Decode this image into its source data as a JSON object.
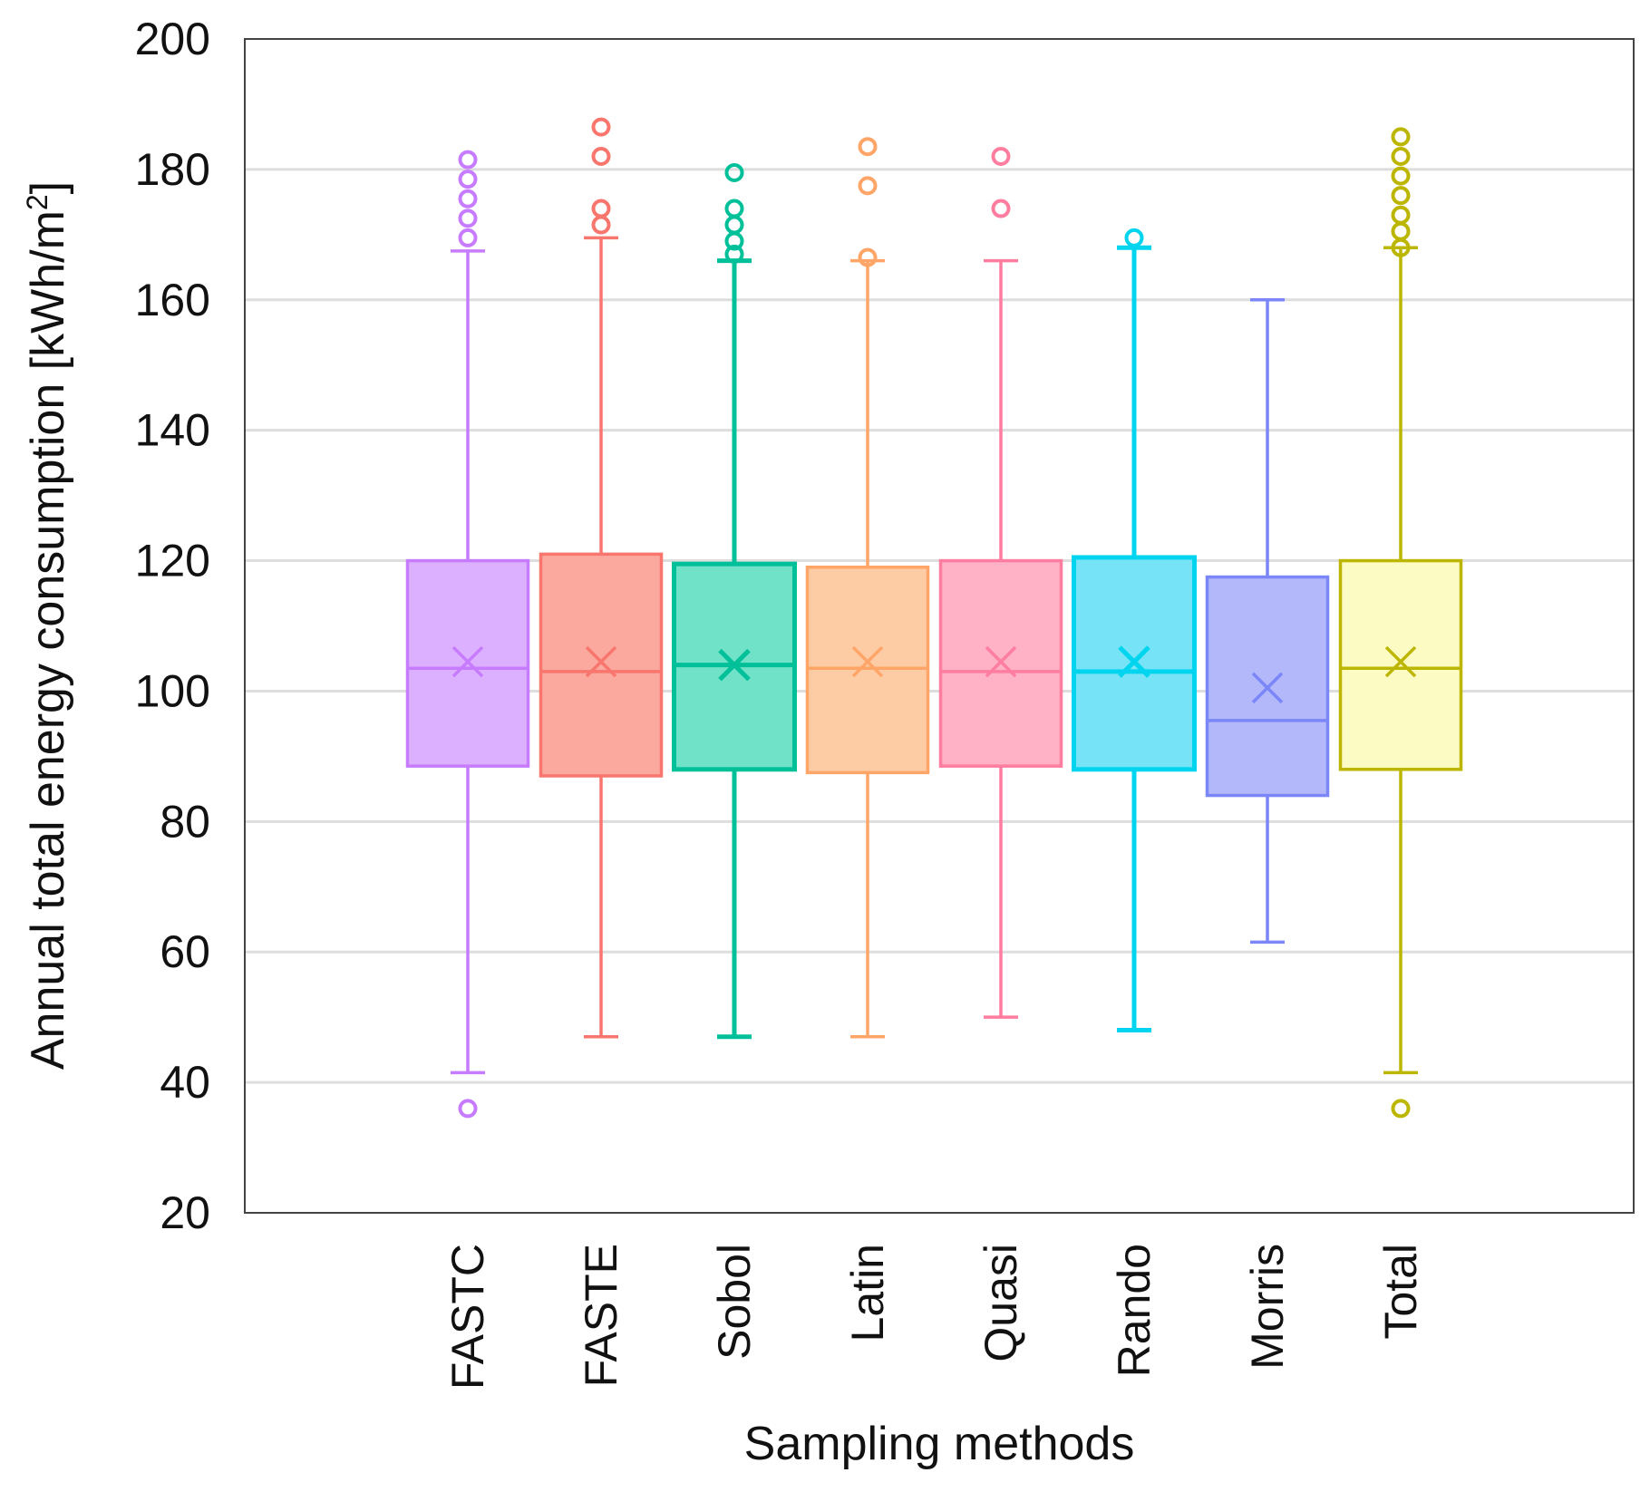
{
  "chart_data": {
    "type": "box",
    "title": "",
    "xlabel": "Sampling methods",
    "ylabel_main": "Annual total energy consumption [kWh/m",
    "ylabel_sup": "2",
    "ylabel_end": "]",
    "ylim": [
      20,
      200
    ],
    "yticks": [
      20,
      40,
      60,
      80,
      100,
      120,
      140,
      160,
      180,
      200
    ],
    "grid": true,
    "legend": "none",
    "series": [
      {
        "name": "FASTC",
        "color": "#c77cff",
        "fill": "#ddb0ff",
        "whisker_low": 41.5,
        "q1": 88.5,
        "median": 103.5,
        "q3": 120,
        "whisker_high": 167.5,
        "mean": 104.5,
        "outliers": [
          36,
          169.5,
          172.5,
          175.5,
          178.5,
          181.5
        ]
      },
      {
        "name": "FASTE",
        "color": "#f8766d",
        "fill": "#fba89f",
        "whisker_low": 47,
        "q1": 87,
        "median": 103,
        "q3": 121,
        "whisker_high": 169.5,
        "mean": 104.5,
        "outliers": [
          171.5,
          174,
          182,
          186.5
        ]
      },
      {
        "name": "Sobol",
        "color": "#00c09a",
        "fill": "#70e2c7",
        "whisker_low": 47,
        "q1": 88,
        "median": 104,
        "q3": 119.5,
        "whisker_high": 166,
        "mean": 104,
        "outliers": [
          167,
          169,
          171.5,
          174,
          179.5
        ]
      },
      {
        "name": "Latin",
        "color": "#ffa568",
        "fill": "#fdcca5",
        "whisker_low": 47,
        "q1": 87.5,
        "median": 103.5,
        "q3": 119,
        "whisker_high": 166,
        "mean": 104.5,
        "outliers": [
          166.5,
          177.5,
          183.5
        ]
      },
      {
        "name": "Quasi",
        "color": "#ff7d9e",
        "fill": "#ffb1c6",
        "whisker_low": 50,
        "q1": 88.5,
        "median": 103,
        "q3": 120,
        "whisker_high": 166,
        "mean": 104.5,
        "outliers": [
          174,
          182
        ]
      },
      {
        "name": "Rando",
        "color": "#00d4ee",
        "fill": "#76e4f6",
        "whisker_low": 48,
        "q1": 88,
        "median": 103,
        "q3": 120.5,
        "whisker_high": 168,
        "mean": 104.5,
        "outliers": [
          169.5
        ]
      },
      {
        "name": "Morris",
        "color": "#7b86f8",
        "fill": "#b3b8fb",
        "whisker_low": 61.5,
        "q1": 84,
        "median": 95.5,
        "q3": 117.5,
        "whisker_high": 160,
        "mean": 100.5,
        "outliers": []
      },
      {
        "name": "Total",
        "color": "#bdb600",
        "fill": "#fdfbc4",
        "whisker_low": 41.5,
        "q1": 88,
        "median": 103.5,
        "q3": 120,
        "whisker_high": 168,
        "mean": 104.5,
        "outliers": [
          36,
          168,
          170.5,
          173,
          176,
          179,
          182,
          185
        ]
      }
    ]
  }
}
